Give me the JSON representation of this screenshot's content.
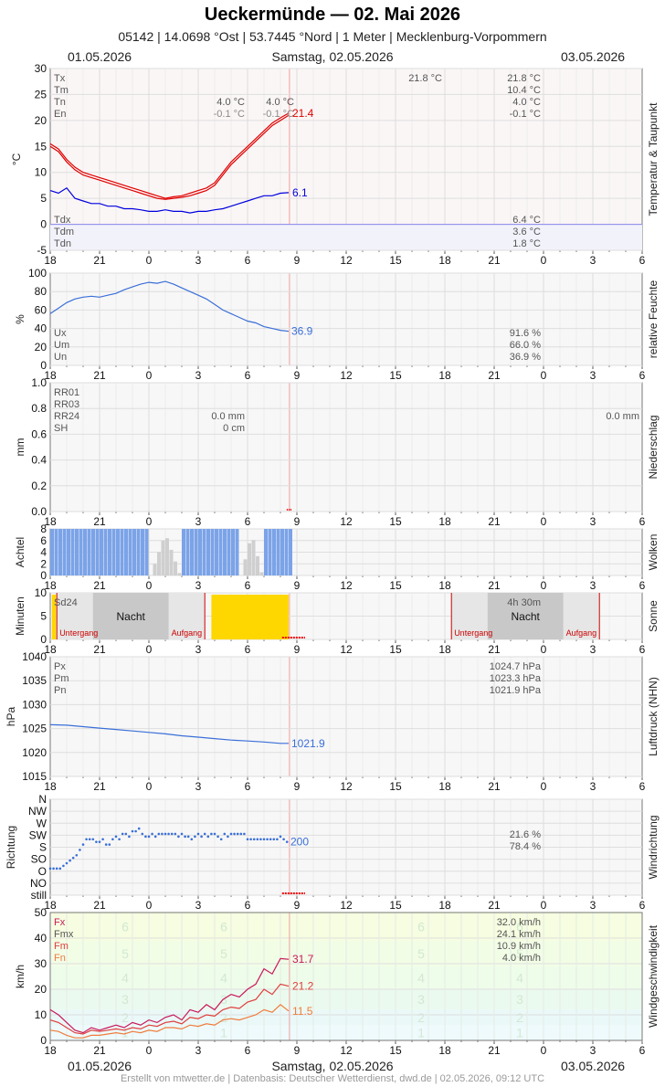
{
  "header": {
    "title": "Ueckermünde  —  02. Mai 2026",
    "subtitle": "05142  |  14.0698 °Ost  |  53.7445 °Nord  |  1 Meter  |  Mecklenburg-Vorpommern",
    "date_left": "01.05.2026",
    "date_center": "Samstag, 02.05.2026",
    "date_right": "03.05.2026"
  },
  "footer": "Erstellt von mtwetter.de | Datenbasis: Deutscher Wetterdienst, dwd.de | 02.05.2026, 09:12 UTC",
  "colors": {
    "red": "#e00000",
    "blue": "#0000dd",
    "humid": "#3a6fd8",
    "cloud": "#7ba3e8",
    "sun": "#ffd700",
    "night": "#c8c8c8",
    "wind_fx": "#c8185a",
    "wind_fm": "#e03c3c",
    "wind_fn": "#f07c3c"
  },
  "chart_data": [
    {
      "id": "temperature",
      "type": "line",
      "side_label": "Temperatur & Taupunkt",
      "ylabel": "°C",
      "ylim": [
        -5,
        30
      ],
      "yticks": [
        "30",
        "25",
        "20",
        "15",
        "10",
        "5",
        "0",
        "-5"
      ],
      "xticks": [
        "18",
        "21",
        "0",
        "3",
        "6",
        "9",
        "12",
        "15",
        "18",
        "21",
        "0",
        "3",
        "6"
      ],
      "series": [
        {
          "id": "tx",
          "x": [
            18,
            18.5,
            19,
            19.5,
            20,
            20.5,
            21,
            21.5,
            22,
            22.5,
            23,
            23.5,
            24,
            24.5,
            25,
            25.5,
            26,
            26.5,
            27,
            27.5,
            28,
            28.5,
            29,
            29.5,
            30,
            30.5,
            31,
            31.5,
            32,
            32.5
          ],
          "y": [
            15.5,
            14.5,
            12.5,
            11,
            10,
            9.5,
            9,
            8.5,
            8,
            7.5,
            7,
            6.5,
            6,
            5.5,
            5,
            5.3,
            5.5,
            6,
            6.5,
            7,
            8,
            10,
            12,
            13.5,
            15,
            16.5,
            18,
            19.5,
            20.5,
            21.4
          ]
        },
        {
          "id": "tm",
          "x": [
            18,
            18.5,
            19,
            19.5,
            20,
            20.5,
            21,
            21.5,
            22,
            22.5,
            23,
            23.5,
            24,
            24.5,
            25,
            25.5,
            26,
            26.5,
            27,
            27.5,
            28,
            28.5,
            29,
            29.5,
            30,
            30.5,
            31,
            31.5,
            32,
            32.5
          ],
          "y": [
            15,
            14,
            12,
            10.5,
            9.5,
            9,
            8.5,
            8,
            7.5,
            7,
            6.5,
            6,
            5.5,
            5,
            4.8,
            5,
            5.2,
            5.5,
            6,
            6.5,
            7.5,
            9.5,
            11.5,
            13,
            14.5,
            16,
            17.5,
            19,
            20,
            21
          ]
        },
        {
          "id": "td",
          "x": [
            18,
            18.5,
            19,
            19.5,
            20,
            20.5,
            21,
            21.5,
            22,
            22.5,
            23,
            23.5,
            24,
            24.5,
            25,
            25.5,
            26,
            26.5,
            27,
            27.5,
            28,
            28.5,
            29,
            29.5,
            30,
            30.5,
            31,
            31.5,
            32,
            32.5
          ],
          "y": [
            6.5,
            6,
            7,
            5,
            4.5,
            4,
            4,
            3.5,
            3.5,
            3,
            3,
            2.8,
            2.5,
            2.5,
            2.8,
            2.5,
            2.5,
            2.2,
            2.5,
            2.5,
            2.8,
            3,
            3.5,
            4,
            4.5,
            5,
            5.5,
            5.5,
            6,
            6.1
          ]
        }
      ],
      "last_values": {
        "tx": "21.4",
        "td": "6.1"
      },
      "labels_left": [
        "Tx",
        "Tm",
        "Tn",
        "En"
      ],
      "labels_left2": [
        "Tdx",
        "Tdm",
        "Tdn"
      ],
      "mid_values": [
        [
          "4.0 °C",
          "4.0 °C"
        ],
        [
          "-0.1 °C",
          "-0.1 °C"
        ]
      ],
      "top_extra": "21.8 °C",
      "right_values": [
        "21.8 °C",
        "10.4 °C",
        "4.0 °C",
        "-0.1 °C"
      ],
      "right_values2": [
        "6.4 °C",
        "3.6 °C",
        "1.8 °C"
      ]
    },
    {
      "id": "humidity",
      "type": "line",
      "side_label": "relative Feuchte",
      "ylabel": "%",
      "ylim": [
        0,
        100
      ],
      "yticks": [
        "100",
        "80",
        "60",
        "40",
        "20",
        "0"
      ],
      "xticks": [
        "18",
        "21",
        "0",
        "3",
        "6",
        "9",
        "12",
        "15",
        "18",
        "21",
        "0",
        "3",
        "6"
      ],
      "series": [
        {
          "id": "rh",
          "x": [
            18,
            18.5,
            19,
            19.5,
            20,
            20.5,
            21,
            21.5,
            22,
            22.5,
            23,
            23.5,
            24,
            24.5,
            25,
            25.5,
            26,
            26.5,
            27,
            27.5,
            28,
            28.5,
            29,
            29.5,
            30,
            30.5,
            31,
            31.5,
            32,
            32.5
          ],
          "y": [
            56,
            62,
            68,
            72,
            74,
            75,
            74,
            76,
            78,
            82,
            85,
            88,
            90,
            89,
            91,
            88,
            84,
            80,
            76,
            72,
            66,
            60,
            56,
            52,
            48,
            46,
            42,
            40,
            38,
            36.9
          ]
        }
      ],
      "last_value": "36.9",
      "labels_left": [
        "Ux",
        "Um",
        "Un"
      ],
      "right_values": [
        "91.6 %",
        "66.0 %",
        "36.9 %"
      ]
    },
    {
      "id": "precipitation",
      "type": "bar",
      "side_label": "Niederschlag",
      "ylabel": "mm",
      "ylim": [
        0,
        1.0
      ],
      "yticks": [
        "1.0",
        "0.8",
        "0.6",
        "0.4",
        "0.2",
        "0.0"
      ],
      "xticks": [
        "18",
        "21",
        "0",
        "3",
        "6",
        "9",
        "12",
        "15",
        "18",
        "21",
        "0",
        "3",
        "6"
      ],
      "labels_left": [
        "RR01",
        "RR03",
        "RR24",
        "SH"
      ],
      "mid_values": [
        "0.0 mm",
        "0 cm"
      ],
      "right_value": "0.0 mm"
    },
    {
      "id": "clouds",
      "type": "bar",
      "side_label": "Wolken",
      "ylabel": "Achtel",
      "ylim": [
        0,
        8
      ],
      "yticks": [
        "8",
        "6",
        "4",
        "2",
        "0"
      ],
      "xticks": [
        "18",
        "21",
        "0",
        "3",
        "6",
        "9",
        "12",
        "15",
        "18",
        "21",
        "0",
        "3",
        "6"
      ],
      "x_start": 18,
      "x_end": 33,
      "step": 0.25,
      "values": [
        8,
        8,
        8,
        8,
        8,
        8,
        8,
        8,
        8,
        8,
        8,
        8,
        8,
        8,
        8,
        8,
        8,
        8,
        8,
        8,
        8,
        8,
        8,
        8,
        8,
        8,
        8,
        8,
        8,
        8,
        8,
        8,
        8,
        8,
        8,
        8,
        8,
        8,
        8,
        8,
        8,
        8,
        8,
        8,
        8,
        8,
        8,
        8,
        8,
        8,
        8,
        8,
        8,
        8,
        8,
        8,
        8,
        8,
        8,
        8
      ],
      "gaps": [
        [
          24,
          25.8
        ],
        [
          29.5,
          30.8
        ]
      ]
    },
    {
      "id": "sunshine",
      "type": "bar",
      "side_label": "Sonne",
      "ylabel": "Minuten",
      "ylim": [
        0,
        10
      ],
      "yticks": [
        "10",
        "5",
        "0"
      ],
      "xticks": [
        "18",
        "21",
        "0",
        "3",
        "6",
        "9",
        "12",
        "15",
        "18",
        "21",
        "0",
        "3",
        "6"
      ],
      "label_left": "Sd24",
      "night_label": "Nacht",
      "sunset_label": "Untergang",
      "sunrise_label": "Aufgang",
      "sun_duration": "4h 30m",
      "night1": [
        18.4,
        27.4
      ],
      "night2": [
        42.4,
        51.4
      ],
      "sun_blocks": [
        [
          18.1,
          18.35
        ],
        [
          27.8,
          32.5
        ]
      ]
    },
    {
      "id": "pressure",
      "type": "line",
      "side_label": "Luftdruck (NHN)",
      "ylabel": "hPa",
      "ylim": [
        1015,
        1040
      ],
      "yticks": [
        "1040",
        "1035",
        "1030",
        "1025",
        "1020",
        "1015"
      ],
      "xticks": [
        "18",
        "21",
        "0",
        "3",
        "6",
        "9",
        "12",
        "15",
        "18",
        "21",
        "0",
        "3",
        "6"
      ],
      "series": [
        {
          "id": "p",
          "x": [
            18,
            19,
            20,
            21,
            22,
            23,
            24,
            25,
            26,
            27,
            28,
            29,
            30,
            31,
            32,
            32.5
          ],
          "y": [
            1025.8,
            1025.7,
            1025.4,
            1025.1,
            1024.8,
            1024.5,
            1024.2,
            1023.9,
            1023.5,
            1023.2,
            1022.9,
            1022.6,
            1022.4,
            1022.2,
            1021.9,
            1021.9
          ]
        }
      ],
      "last_value": "1021.9",
      "labels_left": [
        "Px",
        "Pm",
        "Pn"
      ],
      "right_values": [
        "1024.7 hPa",
        "1023.3 hPa",
        "1021.9 hPa"
      ]
    },
    {
      "id": "wind_direction",
      "type": "scatter",
      "side_label": "Windrichtung",
      "ylabel": "Richtung",
      "ycats": [
        "N",
        "NW",
        "W",
        "SW",
        "S",
        "SO",
        "O",
        "NO",
        "still"
      ],
      "xticks": [
        "18",
        "21",
        "0",
        "3",
        "6",
        "9",
        "12",
        "15",
        "18",
        "21",
        "0",
        "3",
        "6"
      ],
      "series": [
        {
          "id": "dir",
          "x": [
            18,
            18.2,
            18.4,
            18.6,
            18.8,
            19,
            19.2,
            19.4,
            19.6,
            19.8,
            20,
            20.2,
            20.4,
            20.6,
            20.8,
            21,
            21.2,
            21.4,
            21.6,
            21.8,
            22,
            22.2,
            22.4,
            22.6,
            22.8,
            23,
            23.2,
            23.4,
            23.6,
            23.8,
            24,
            24.2,
            24.4,
            24.6,
            24.8,
            25,
            25.2,
            25.4,
            25.6,
            25.8,
            26,
            26.2,
            26.4,
            26.6,
            26.8,
            27,
            27.2,
            27.4,
            27.6,
            27.8,
            28,
            28.2,
            28.4,
            28.6,
            28.8,
            29,
            29.2,
            29.4,
            29.6,
            29.8,
            30,
            30.2,
            30.4,
            30.6,
            30.8,
            31,
            31.2,
            31.4,
            31.6,
            31.8,
            32,
            32.2,
            32.4
          ],
          "y": [
            100,
            100,
            100,
            100,
            110,
            120,
            130,
            140,
            150,
            170,
            190,
            210,
            210,
            210,
            200,
            200,
            210,
            190,
            190,
            210,
            220,
            210,
            230,
            230,
            220,
            240,
            240,
            250,
            230,
            220,
            220,
            230,
            220,
            230,
            230,
            230,
            230,
            230,
            230,
            220,
            230,
            220,
            220,
            210,
            220,
            230,
            220,
            230,
            220,
            230,
            230,
            220,
            210,
            230,
            220,
            230,
            230,
            230,
            230,
            230,
            210,
            210,
            210,
            210,
            210,
            210,
            210,
            210,
            210,
            210,
            220,
            210,
            200
          ]
        }
      ],
      "last_value": "200",
      "right_values": [
        "21.6 %",
        "78.4 %"
      ]
    },
    {
      "id": "wind_speed",
      "type": "line",
      "side_label": "Windgeschwindigkeit",
      "ylabel": "km/h",
      "ylim": [
        0,
        50
      ],
      "yticks": [
        "50",
        "40",
        "30",
        "20",
        "10",
        "0"
      ],
      "xticks": [
        "18",
        "21",
        "0",
        "3",
        "6",
        "9",
        "12",
        "15",
        "18",
        "21",
        "0",
        "3",
        "6"
      ],
      "bft_labels": [
        "1",
        "2",
        "3",
        "4",
        "5",
        "6"
      ],
      "bft_bounds": [
        0,
        6,
        12,
        20,
        29,
        39,
        50
      ],
      "series": [
        {
          "id": "fx",
          "x": [
            18,
            18.5,
            19,
            19.5,
            20,
            20.5,
            21,
            21.5,
            22,
            22.5,
            23,
            23.5,
            24,
            24.5,
            25,
            25.5,
            26,
            26.5,
            27,
            27.5,
            28,
            28.5,
            29,
            29.5,
            30,
            30.5,
            31,
            31.5,
            32,
            32.5
          ],
          "y": [
            12,
            10,
            7,
            4,
            3,
            5,
            4,
            5,
            6,
            5,
            7,
            6,
            8,
            7,
            9,
            10,
            8,
            12,
            11,
            14,
            12,
            16,
            18,
            17,
            20,
            22,
            28,
            26,
            32,
            31.7
          ]
        },
        {
          "id": "fm",
          "x": [
            18,
            18.5,
            19,
            19.5,
            20,
            20.5,
            21,
            21.5,
            22,
            22.5,
            23,
            23.5,
            24,
            24.5,
            25,
            25.5,
            26,
            26.5,
            27,
            27.5,
            28,
            28.5,
            29,
            29.5,
            30,
            30.5,
            31,
            31.5,
            32,
            32.5
          ],
          "y": [
            8,
            7,
            5,
            3,
            2.5,
            4,
            3.5,
            4,
            4.5,
            4,
            5,
            4.5,
            6,
            5.5,
            7,
            7.5,
            6.5,
            9,
            8.5,
            10,
            9.5,
            12,
            13,
            12.5,
            15,
            16,
            20,
            18,
            22,
            21.2
          ]
        },
        {
          "id": "fn",
          "x": [
            18,
            18.5,
            19,
            19.5,
            20,
            20.5,
            21,
            21.5,
            22,
            22.5,
            23,
            23.5,
            24,
            24.5,
            25,
            25.5,
            26,
            26.5,
            27,
            27.5,
            28,
            28.5,
            29,
            29.5,
            30,
            30.5,
            31,
            31.5,
            32,
            32.5
          ],
          "y": [
            4,
            3.5,
            2,
            1,
            1,
            2,
            2,
            2.5,
            3,
            2.5,
            3.5,
            3,
            4,
            3.5,
            5,
            5,
            4.5,
            6,
            5.5,
            6.5,
            6,
            8,
            8.5,
            8,
            9,
            10,
            12,
            11,
            14,
            11.5
          ]
        }
      ],
      "last_values": {
        "fx": "31.7",
        "fm": "21.2",
        "fn": "11.5"
      },
      "labels_left": [
        "Fx",
        "Fmx",
        "Fm",
        "Fn"
      ],
      "right_values": [
        "32.0 km/h",
        "24.1 km/h",
        "10.9 km/h",
        "4.0 km/h"
      ]
    }
  ]
}
